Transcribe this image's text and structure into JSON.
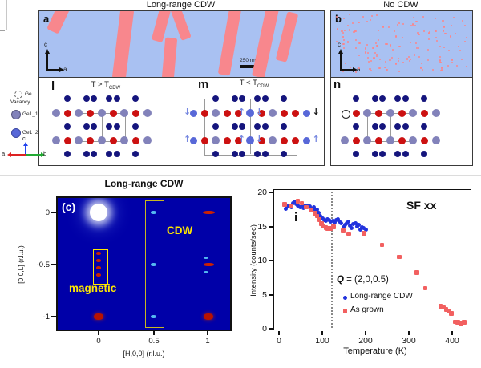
{
  "colors": {
    "panel_bg": "#a9c1f2",
    "stripe": "#f8878d",
    "navy": "#15157d",
    "red": "#cc1111",
    "slate": "#8282ba",
    "ge2_blue": "#5868d8",
    "arrow_blue": "#7788e0",
    "map_bg": "#0000a8",
    "annotation_yellow": "#ffe800",
    "tall_box_yellow": "#c8b820",
    "blue_marker": "#2233dd",
    "red_marker": "#f26060"
  },
  "top": {
    "left_title": "Long-range CDW",
    "right_title": "No CDW",
    "panel_a_label": "a",
    "panel_b_label": "b",
    "axis_c": "c",
    "axis_a": "a",
    "scale_bar_label": "250 nm",
    "panel_l_label": "l",
    "panel_m_label": "m",
    "panel_n_label": "n",
    "l_title_main": "T > T",
    "l_title_sub": "CDW",
    "m_title_main": "T < T",
    "m_title_sub": "CDW"
  },
  "legend": {
    "vacancy_line1": "Ge",
    "vacancy_line2": "Vacancy",
    "ge1_1": "Ge1_1",
    "ge1_2": "Ge1_2",
    "axis_c": "c",
    "axis_a": "a",
    "axis_b": "b"
  },
  "lattice": {
    "row_sequence": [
      "navy",
      "colored",
      "navy",
      "colored",
      "navy"
    ],
    "navy_row_pattern": "single at cols 1 and 7, pairs at cols 3 and 5",
    "panels": {
      "l": {
        "colored_rows": [
          [
            "slate",
            "red",
            "slate",
            "red",
            "slate",
            "red",
            "slate",
            "red",
            "slate"
          ],
          [
            "slate",
            "red",
            "slate",
            "red",
            "slate",
            "red",
            "slate",
            "red",
            "slate"
          ]
        ],
        "unit_cell_cols": [
          2,
          4,
          6
        ],
        "displacement_arrows": false
      },
      "m": {
        "colored_rows": [
          [
            "red",
            "slate",
            "red",
            "red",
            "blue",
            "red",
            "slate",
            "red",
            "red"
          ],
          [
            "red",
            "slate",
            "red",
            "red",
            "blue",
            "red",
            "slate",
            "red",
            "red"
          ]
        ],
        "unit_cell_cols": [
          0,
          4,
          8
        ],
        "displacement_arrows": true
      },
      "n": {
        "colored_rows": [
          [
            "vacancy",
            "red",
            "slate",
            "red",
            "slate",
            "red",
            "slate",
            "red",
            "slate"
          ],
          [
            "slate",
            "red",
            "slate",
            "red",
            "slate",
            "red",
            "slate",
            "red",
            "slate"
          ]
        ],
        "unit_cell_cols": [
          2,
          4,
          6
        ],
        "displacement_arrows": false
      }
    }
  },
  "map": {
    "panel_label": "(c)",
    "title": "Long-range CDW",
    "xlabel": "[H,0,0] (r.l.u.)",
    "ylabel": "[0,0,L] (r.l.u.)",
    "x_ticks": [
      "0",
      "0.5",
      "1"
    ],
    "y_ticks": [
      "0",
      "-0.5",
      "-1"
    ],
    "cdw_label": "CDW",
    "magnetic_label": "magnetic"
  },
  "scatter": {
    "panel_label": "i",
    "corner_label": "SF xx",
    "xlabel": "Temperature (K)",
    "ylabel": "Intensity (counts/sec)",
    "q_symbol": "Q",
    "q_rest": " = (2,0,0.5)",
    "legend_blue": "Long-range CDW",
    "legend_red": "As grown"
  },
  "chart_data": [
    {
      "type": "heatmap",
      "panel_label": "(c)",
      "title": "Long-range CDW",
      "xlabel": "[H,0,0] (r.l.u.)",
      "ylabel": "[0,0,L] (r.l.u.)",
      "x_ticks": [
        0,
        0.5,
        1
      ],
      "y_ticks": [
        0,
        -0.5,
        -1
      ],
      "xlim": [
        -0.37,
        1.2
      ],
      "ylim": [
        -1.13,
        0.14
      ],
      "background": "dark blue detector image",
      "annotations": [
        "CDW",
        "magnetic"
      ],
      "peaks": [
        {
          "H": 0,
          "L": 0,
          "kind": "direct_beam"
        },
        {
          "H": 0.5,
          "L": 0,
          "kind": "cdw"
        },
        {
          "H": 0.5,
          "L": -0.5,
          "kind": "cdw"
        },
        {
          "H": 0.5,
          "L": -1,
          "kind": "cdw"
        },
        {
          "H": 0,
          "L": -0.5,
          "kind": "magnetic_column"
        },
        {
          "H": 0,
          "L": -1,
          "kind": "bragg"
        },
        {
          "H": 1,
          "L": 0,
          "kind": "bragg_streak"
        },
        {
          "H": 1,
          "L": -0.5,
          "kind": "bragg_magnetic_cluster"
        },
        {
          "H": 1,
          "L": -1,
          "kind": "bragg"
        }
      ]
    },
    {
      "type": "scatter",
      "panel_label": "i",
      "title": "SF xx",
      "xlabel": "Temperature (K)",
      "ylabel": "Intensity (counts/sec)",
      "xlim": [
        0,
        440
      ],
      "ylim": [
        0,
        20
      ],
      "x_ticks": [
        0,
        100,
        200,
        300,
        400
      ],
      "y_ticks": [
        0,
        5,
        10,
        15,
        20
      ],
      "grid": false,
      "dashed_vline_x": 120,
      "annotation": "Q = (2,0,0.5)",
      "legend_position": "center-left inside plot",
      "series": [
        {
          "name": "Long-range CDW",
          "marker": "circle",
          "color": "#2233dd",
          "points": [
            [
              15,
              18.2
            ],
            [
              18,
              17.5
            ],
            [
              22,
              17.8
            ],
            [
              26,
              18.0
            ],
            [
              30,
              17.7
            ],
            [
              34,
              18.3
            ],
            [
              38,
              18.5
            ],
            [
              42,
              18.2
            ],
            [
              46,
              17.9
            ],
            [
              50,
              17.7
            ],
            [
              54,
              17.8
            ],
            [
              58,
              17.6
            ],
            [
              62,
              17.9
            ],
            [
              66,
              17.7
            ],
            [
              70,
              18.0
            ],
            [
              74,
              17.8
            ],
            [
              78,
              17.5
            ],
            [
              82,
              17.7
            ],
            [
              86,
              17.2
            ],
            [
              90,
              17.4
            ],
            [
              94,
              16.9
            ],
            [
              98,
              16.4
            ],
            [
              102,
              16.1
            ],
            [
              106,
              15.8
            ],
            [
              110,
              15.7
            ],
            [
              114,
              15.9
            ],
            [
              118,
              15.8
            ],
            [
              122,
              15.6
            ],
            [
              126,
              15.7
            ],
            [
              130,
              15.5
            ],
            [
              134,
              15.8
            ],
            [
              138,
              15.9
            ],
            [
              142,
              15.6
            ],
            [
              146,
              15.3
            ],
            [
              150,
              14.8
            ],
            [
              154,
              15.1
            ],
            [
              158,
              15.4
            ],
            [
              162,
              15.6
            ],
            [
              166,
              15.0
            ],
            [
              170,
              14.7
            ],
            [
              174,
              15.2
            ],
            [
              178,
              15.4
            ],
            [
              182,
              14.9
            ],
            [
              186,
              15.1
            ],
            [
              190,
              14.4
            ],
            [
              194,
              14.8
            ],
            [
              198,
              14.6
            ],
            [
              203,
              14.4
            ]
          ]
        },
        {
          "name": "As grown",
          "marker": "square",
          "color": "#f26060",
          "points": [
            [
              15,
              18.1
            ],
            [
              30,
              17.8
            ],
            [
              45,
              18.6
            ],
            [
              55,
              18.3
            ],
            [
              65,
              17.7
            ],
            [
              75,
              17.3
            ],
            [
              85,
              16.8
            ],
            [
              90,
              16.4
            ],
            [
              95,
              15.9
            ],
            [
              100,
              15.3
            ],
            [
              105,
              14.9
            ],
            [
              110,
              14.7
            ],
            [
              115,
              14.6
            ],
            [
              120,
              14.6
            ],
            [
              128,
              14.8
            ],
            [
              150,
              14.3
            ],
            [
              163,
              13.8
            ],
            [
              198,
              13.9
            ],
            [
              240,
              12.2
            ],
            [
              280,
              10.4
            ],
            [
              320,
              8.1
            ],
            [
              340,
              5.8
            ],
            [
              375,
              3.2
            ],
            [
              382,
              3.0
            ],
            [
              388,
              2.7
            ],
            [
              394,
              2.4
            ],
            [
              400,
              2.1
            ],
            [
              408,
              0.9
            ],
            [
              415,
              0.8
            ],
            [
              422,
              0.7
            ],
            [
              430,
              0.8
            ]
          ]
        }
      ]
    }
  ]
}
